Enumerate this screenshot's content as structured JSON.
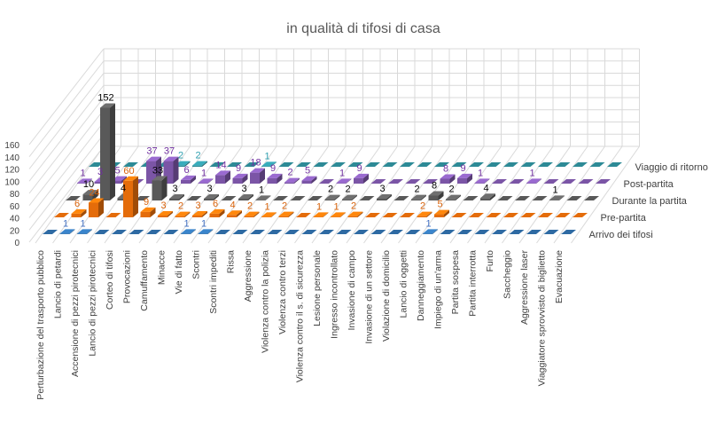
{
  "chart_data": {
    "type": "bar",
    "variant": "3d-column",
    "title": "in qualità di tifosi di casa",
    "ylim": [
      0,
      160
    ],
    "yticks": [
      0,
      20,
      40,
      60,
      80,
      100,
      120,
      140,
      160
    ],
    "grid": true,
    "legend": "series labels on depth axis (right)",
    "categories": [
      "Perturbazione del trasporto pubblico",
      "Lancio di petardi",
      "Accensione di pezzi pirotecnici",
      "Lancio di pezzi pirotecnici",
      "Corteo di tifosi",
      "Provocazioni",
      "Camuffamento",
      "Minacce",
      "Vie di fatto",
      "Scontri",
      "Scontri impediti",
      "Rissa",
      "Aggressione",
      "Violenza contro la polizia",
      "Violenza contro terzi",
      "Violenza contro il s. di sicurezza",
      "Lesione personale",
      "Ingresso incontrollato",
      "Invasione di campo",
      "Invasione di un settore",
      "Violazione di domicilio",
      "Lancio di oggetti",
      "Danneggiamento",
      "Impiego di un'arma",
      "Partita sospesa",
      "Partita interrotta",
      "Furto",
      "Saccheggio",
      "Aggressione laser",
      "Viaggiatore sprovvisto di biglietto",
      "Evacuazione"
    ],
    "series": [
      {
        "name": "Arrivo dei tifosi",
        "color": "#2e6aa3",
        "label_color": "#4472c4",
        "values": [
          0,
          1,
          1,
          0,
          0,
          0,
          0,
          0,
          1,
          1,
          0,
          0,
          0,
          0,
          0,
          0,
          0,
          0,
          0,
          0,
          0,
          0,
          1,
          0,
          0,
          0,
          0,
          0,
          0,
          0,
          0
        ]
      },
      {
        "name": "Pre-partita",
        "color": "#e46c0a",
        "label_color": "#d9620a",
        "values": [
          0,
          6,
          24,
          0,
          60,
          9,
          3,
          2,
          3,
          6,
          4,
          2,
          1,
          2,
          0,
          1,
          1,
          2,
          0,
          0,
          0,
          2,
          5,
          0,
          0,
          0,
          0,
          0,
          0,
          0,
          0
        ]
      },
      {
        "name": "Durante la partita",
        "color": "#595959",
        "label_color": "#000000",
        "values": [
          0,
          10,
          152,
          4,
          0,
          33,
          3,
          0,
          3,
          0,
          3,
          1,
          0,
          0,
          0,
          2,
          2,
          0,
          3,
          0,
          2,
          8,
          2,
          0,
          4,
          0,
          0,
          0,
          1,
          0,
          0
        ]
      },
      {
        "name": "Post-partita",
        "color": "#7b55a6",
        "label_color": "#7030a0",
        "values": [
          1,
          3,
          5,
          0,
          37,
          37,
          6,
          1,
          14,
          9,
          18,
          9,
          2,
          5,
          0,
          1,
          9,
          0,
          0,
          0,
          0,
          8,
          9,
          1,
          0,
          0,
          1,
          0,
          0,
          0,
          0
        ]
      },
      {
        "name": "Viaggio di ritorno",
        "color": "#2d8a96",
        "label_color": "#31a0b0",
        "values": [
          0,
          0,
          0,
          0,
          0,
          2,
          2,
          0,
          0,
          0,
          1,
          0,
          0,
          0,
          0,
          0,
          0,
          0,
          0,
          0,
          0,
          0,
          0,
          0,
          0,
          0,
          0,
          0,
          0,
          0,
          0
        ]
      }
    ]
  }
}
